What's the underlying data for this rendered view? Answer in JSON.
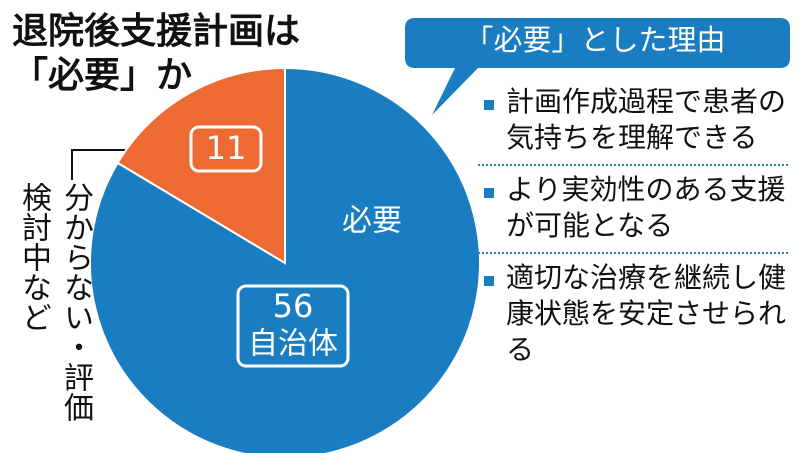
{
  "chart_data": {
    "type": "pie",
    "title_lines": [
      "退院後支援計画は",
      "「必要」か"
    ],
    "categories": [
      "必要",
      "分からない・評価検討中など"
    ],
    "values": [
      56,
      11
    ],
    "unit": "自治体",
    "colors": [
      "#1a7cc1",
      "#ee6a33"
    ]
  },
  "reasons": {
    "header": "「必要」とした理由",
    "items": [
      "計画作成過程で患者の気持ちを理解できる",
      "より実効性のある支援が可能となる",
      "適切な治療を継続し健康状態を安定させられる"
    ]
  }
}
